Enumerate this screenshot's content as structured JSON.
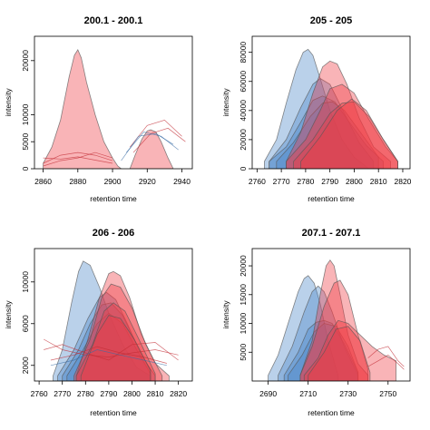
{
  "chart_data": [
    {
      "type": "area",
      "title": "200.1 - 200.1",
      "xlabel": "retention time",
      "ylabel": "intensity",
      "xlim": [
        2855,
        2946
      ],
      "ylim": [
        0,
        24500
      ],
      "xticks": [
        2860,
        2880,
        2900,
        2920,
        2940
      ],
      "yticks": [
        0,
        5000,
        10000,
        20000
      ],
      "peaks": [
        {
          "group": "red",
          "x": [
            2860,
            2865,
            2870,
            2875,
            2878,
            2880,
            2882,
            2885,
            2890,
            2895,
            2900,
            2903,
            2905
          ],
          "y": [
            1000,
            4000,
            9000,
            17000,
            21000,
            22000,
            20500,
            16000,
            10000,
            5000,
            2000,
            500,
            0
          ]
        },
        {
          "group": "red",
          "x": [
            2910,
            2913,
            2917,
            2920,
            2922,
            2925,
            2928,
            2932,
            2935
          ],
          "y": [
            0,
            2500,
            5500,
            7000,
            7200,
            6800,
            5000,
            2000,
            0
          ]
        }
      ],
      "traces": [
        {
          "group": "red",
          "x": [
            2860,
            2870,
            2880,
            2890,
            2900
          ],
          "y": [
            1000,
            2500,
            3000,
            2500,
            1500
          ]
        },
        {
          "group": "red",
          "x": [
            2860,
            2870,
            2880,
            2890,
            2900
          ],
          "y": [
            2000,
            1800,
            2200,
            1600,
            1000
          ]
        },
        {
          "group": "red",
          "x": [
            2860,
            2870,
            2880,
            2890,
            2900
          ],
          "y": [
            500,
            1500,
            2000,
            3000,
            2000
          ]
        },
        {
          "group": "red",
          "x": [
            2910,
            2920,
            2930,
            2940
          ],
          "y": [
            4000,
            8000,
            9000,
            6000
          ]
        },
        {
          "group": "red",
          "x": [
            2912,
            2922,
            2932,
            2942
          ],
          "y": [
            3000,
            6500,
            7500,
            5000
          ]
        },
        {
          "group": "blue",
          "x": [
            2905,
            2915,
            2925,
            2935
          ],
          "y": [
            1500,
            6000,
            6500,
            4500
          ]
        },
        {
          "group": "blue",
          "x": [
            2908,
            2918,
            2928,
            2938
          ],
          "y": [
            3000,
            6800,
            6000,
            3500
          ]
        }
      ]
    },
    {
      "type": "area",
      "title": "205 - 205",
      "xlabel": "retention time",
      "ylabel": "intensity",
      "xlim": [
        2758,
        2823
      ],
      "ylim": [
        0,
        91000
      ],
      "xticks": [
        2760,
        2770,
        2780,
        2790,
        2800,
        2810,
        2820
      ],
      "yticks": [
        0,
        20000,
        40000,
        60000,
        80000
      ],
      "peaks": [
        {
          "group": "blue",
          "x": [
            2763,
            2768,
            2772,
            2776,
            2779,
            2781,
            2783,
            2786,
            2790,
            2795,
            2800,
            2806
          ],
          "y": [
            5000,
            20000,
            45000,
            68000,
            80000,
            82000,
            78000,
            62000,
            40000,
            20000,
            8000,
            0
          ]
        },
        {
          "group": "blue",
          "x": [
            2765,
            2772,
            2778,
            2783,
            2786,
            2790,
            2796,
            2802,
            2808
          ],
          "y": [
            5000,
            20000,
            42000,
            58000,
            62000,
            58000,
            38000,
            18000,
            5000
          ]
        },
        {
          "group": "blue",
          "x": [
            2765,
            2772,
            2778,
            2783,
            2787,
            2792,
            2798,
            2805,
            2812
          ],
          "y": [
            5000,
            15000,
            32000,
            47000,
            50000,
            46000,
            32000,
            16000,
            5000
          ]
        },
        {
          "group": "blue",
          "x": [
            2768,
            2775,
            2782,
            2787,
            2791,
            2796,
            2803,
            2810
          ],
          "y": [
            5000,
            18000,
            36000,
            45000,
            46000,
            40000,
            24000,
            8000
          ]
        },
        {
          "group": "red",
          "x": [
            2772,
            2778,
            2783,
            2787,
            2790,
            2793,
            2797,
            2802,
            2808,
            2815
          ],
          "y": [
            5000,
            25000,
            52000,
            70000,
            74000,
            72000,
            58000,
            35000,
            15000,
            5000
          ]
        },
        {
          "group": "red",
          "x": [
            2772,
            2780,
            2786,
            2790,
            2795,
            2800,
            2806,
            2813,
            2818
          ],
          "y": [
            5000,
            20000,
            40000,
            55000,
            58000,
            52000,
            34000,
            15000,
            5000
          ]
        },
        {
          "group": "red",
          "x": [
            2775,
            2783,
            2790,
            2795,
            2800,
            2806,
            2812,
            2818
          ],
          "y": [
            5000,
            20000,
            38000,
            45000,
            46000,
            36000,
            20000,
            5000
          ]
        },
        {
          "group": "red",
          "x": [
            2778,
            2786,
            2793,
            2799,
            2805,
            2812,
            2818
          ],
          "y": [
            5000,
            22000,
            40000,
            48000,
            40000,
            20000,
            5000
          ]
        }
      ]
    },
    {
      "type": "area",
      "title": "206 - 206",
      "xlabel": "retention time",
      "ylabel": "intensity",
      "xlim": [
        2758,
        2826
      ],
      "ylim": [
        500,
        13200
      ],
      "xticks": [
        2760,
        2770,
        2780,
        2790,
        2800,
        2810,
        2820
      ],
      "yticks": [
        2000,
        6000,
        10000
      ],
      "peaks": [
        {
          "group": "blue",
          "x": [
            2766,
            2770,
            2774,
            2777,
            2779,
            2782,
            2786,
            2790,
            2796,
            2802,
            2808
          ],
          "y": [
            1000,
            3500,
            8000,
            11000,
            12000,
            11600,
            9500,
            7000,
            4000,
            1800,
            1000
          ]
        },
        {
          "group": "blue",
          "x": [
            2768,
            2775,
            2781,
            2786,
            2789,
            2793,
            2798,
            2804,
            2810
          ],
          "y": [
            1000,
            3500,
            6500,
            8500,
            9000,
            8300,
            6000,
            3000,
            1000
          ]
        },
        {
          "group": "blue",
          "x": [
            2770,
            2777,
            2782,
            2787,
            2791,
            2796,
            2802,
            2808
          ],
          "y": [
            1000,
            3500,
            6000,
            7800,
            8000,
            6800,
            4000,
            1500
          ]
        },
        {
          "group": "blue",
          "x": [
            2772,
            2779,
            2785,
            2790,
            2796,
            2802,
            2808
          ],
          "y": [
            1000,
            3500,
            6000,
            7000,
            6000,
            3500,
            1200
          ]
        },
        {
          "group": "red",
          "x": [
            2776,
            2781,
            2786,
            2790,
            2792,
            2795,
            2799,
            2804,
            2810,
            2816
          ],
          "y": [
            1000,
            4500,
            8500,
            10800,
            11000,
            10600,
            8500,
            5000,
            2200,
            1000
          ]
        },
        {
          "group": "red",
          "x": [
            2775,
            2782,
            2787,
            2791,
            2795,
            2800,
            2806,
            2813
          ],
          "y": [
            1000,
            4500,
            8500,
            9800,
            9500,
            7500,
            4000,
            1000
          ]
        },
        {
          "group": "red",
          "x": [
            2776,
            2783,
            2788,
            2792,
            2797,
            2803,
            2810
          ],
          "y": [
            1000,
            4000,
            7200,
            8000,
            7200,
            4500,
            1200
          ]
        },
        {
          "group": "red",
          "x": [
            2778,
            2785,
            2790,
            2795,
            2801,
            2808
          ],
          "y": [
            1000,
            5000,
            6800,
            6500,
            4500,
            1500
          ]
        }
      ],
      "traces": [
        {
          "group": "red",
          "x": [
            2762,
            2770,
            2780,
            2790,
            2800,
            2810,
            2820
          ],
          "y": [
            4500,
            3500,
            3000,
            2800,
            3200,
            3500,
            3000
          ]
        },
        {
          "group": "red",
          "x": [
            2762,
            2770,
            2780,
            2790,
            2800,
            2810,
            2820
          ],
          "y": [
            3500,
            4000,
            3200,
            2500,
            4000,
            4200,
            2500
          ]
        },
        {
          "group": "red",
          "x": [
            2765,
            2775,
            2785,
            2795,
            2805,
            2815
          ],
          "y": [
            2500,
            3000,
            3800,
            3200,
            2800,
            2200
          ]
        },
        {
          "group": "blue",
          "x": [
            2765,
            2775,
            2785,
            2795,
            2805,
            2815
          ],
          "y": [
            2000,
            2500,
            3500,
            3000,
            2500,
            2000
          ]
        }
      ]
    },
    {
      "type": "area",
      "title": "207.1 - 207.1",
      "xlabel": "retention time",
      "ylabel": "intensity",
      "xlim": [
        2682,
        2761
      ],
      "ylim": [
        0,
        23000
      ],
      "xticks": [
        2690,
        2710,
        2730,
        2750
      ],
      "yticks": [
        5000,
        10000,
        15000,
        20000
      ],
      "peaks": [
        {
          "group": "blue",
          "x": [
            2690,
            2695,
            2700,
            2705,
            2708,
            2710,
            2713,
            2716,
            2720,
            2725
          ],
          "y": [
            1000,
            4500,
            10000,
            15500,
            17800,
            18300,
            17000,
            13500,
            7000,
            1000
          ]
        },
        {
          "group": "blue",
          "x": [
            2695,
            2702,
            2708,
            2712,
            2715,
            2718,
            2722,
            2728,
            2735
          ],
          "y": [
            1000,
            6000,
            12000,
            15500,
            16500,
            15500,
            12000,
            6000,
            1000
          ]
        },
        {
          "group": "blue",
          "x": [
            2698,
            2705,
            2710,
            2714,
            2718,
            2722,
            2728,
            2735
          ],
          "y": [
            1000,
            5000,
            9000,
            10200,
            10500,
            10000,
            6500,
            1500
          ]
        },
        {
          "group": "blue",
          "x": [
            2700,
            2707,
            2713,
            2718,
            2724,
            2730,
            2735
          ],
          "y": [
            1000,
            4500,
            8500,
            10000,
            9500,
            6000,
            1500
          ]
        },
        {
          "group": "red",
          "x": [
            2706,
            2712,
            2716,
            2719,
            2721,
            2723,
            2726,
            2730,
            2735,
            2740
          ],
          "y": [
            1000,
            7000,
            15000,
            20000,
            21000,
            20000,
            15000,
            8000,
            3000,
            1000
          ]
        },
        {
          "group": "red",
          "x": [
            2706,
            2712,
            2718,
            2723,
            2726,
            2730,
            2735,
            2740
          ],
          "y": [
            1000,
            6000,
            13000,
            17000,
            17500,
            15000,
            8000,
            2000
          ]
        },
        {
          "group": "red",
          "x": [
            2708,
            2715,
            2720,
            2725,
            2730,
            2736,
            2742,
            2748,
            2754
          ],
          "y": [
            1000,
            4000,
            8000,
            10500,
            10000,
            8000,
            6000,
            4500,
            3500
          ]
        },
        {
          "group": "red",
          "x": [
            2710,
            2718,
            2724,
            2730,
            2736,
            2741
          ],
          "y": [
            1000,
            5000,
            9000,
            9500,
            7000,
            1500
          ]
        }
      ],
      "traces": [
        {
          "group": "red",
          "x": [
            2740,
            2745,
            2750,
            2755,
            2758
          ],
          "y": [
            4000,
            5500,
            6000,
            3500,
            2500
          ]
        },
        {
          "group": "red",
          "x": [
            2740,
            2745,
            2750,
            2755,
            2758
          ],
          "y": [
            2500,
            3500,
            4500,
            3000,
            2000
          ]
        }
      ]
    }
  ],
  "colors": {
    "blue_fill": "#4a86c8",
    "red_fill": "#ee3a43",
    "blue_line": "#3a6ea5",
    "red_line": "#c22b33"
  }
}
